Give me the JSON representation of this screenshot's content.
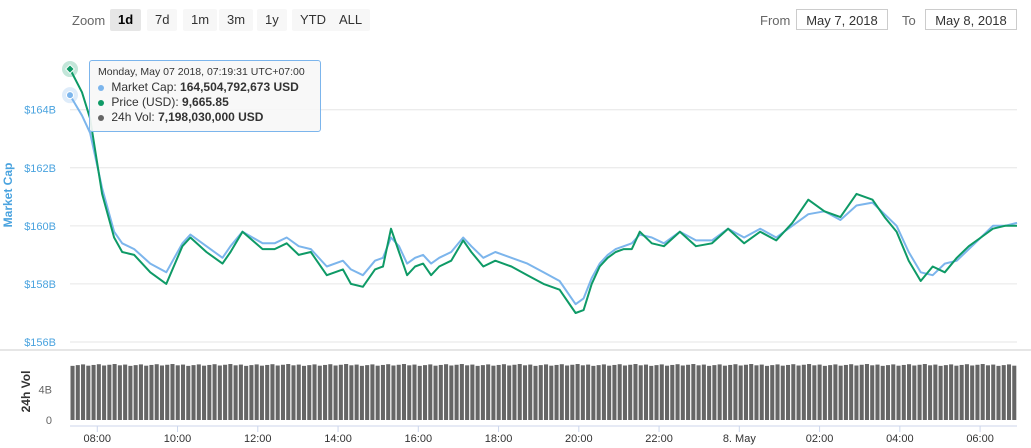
{
  "toolbar": {
    "zoom_label": "Zoom",
    "buttons": [
      "1d",
      "7d",
      "1m",
      "3m",
      "1y",
      "YTD",
      "ALL"
    ],
    "active": "1d",
    "from_label": "From",
    "from_value": "May 7, 2018",
    "to_label": "To",
    "to_value": "May 8, 2018"
  },
  "tooltip": {
    "title": "Monday, May 07 2018, 07:19:31 UTC+07:00",
    "rows": [
      {
        "label": "Market Cap:",
        "value": "164,504,792,673 USD"
      },
      {
        "label": "Price (USD):",
        "value": "9,665.85"
      },
      {
        "label": "24h Vol:",
        "value": "7,198,030,000 USD"
      }
    ]
  },
  "colors": {
    "market_cap": "#7cb5ec",
    "market_cap_label": "#4aa3df",
    "price": "#0e9a66",
    "volume": "#666666"
  },
  "chart_data": {
    "type": "line",
    "x_unit": "hours since 07:19 May 7 2018 (UTC+07:00)",
    "x_ticks": [
      {
        "label": "08:00",
        "x": 0.68
      },
      {
        "label": "10:00",
        "x": 2.68
      },
      {
        "label": "12:00",
        "x": 4.68
      },
      {
        "label": "14:00",
        "x": 6.68
      },
      {
        "label": "16:00",
        "x": 8.68
      },
      {
        "label": "18:00",
        "x": 10.68
      },
      {
        "label": "20:00",
        "x": 12.68
      },
      {
        "label": "22:00",
        "x": 14.68
      },
      {
        "label": "8. May",
        "x": 16.68
      },
      {
        "label": "02:00",
        "x": 18.68
      },
      {
        "label": "04:00",
        "x": 20.68
      },
      {
        "label": "06:00",
        "x": 22.68
      }
    ],
    "y_axis": {
      "label": "Market Cap",
      "ticks": [
        "$156B",
        "$158B",
        "$160B",
        "$162B",
        "$164B"
      ],
      "tick_values": [
        156,
        158,
        160,
        162,
        164
      ],
      "range": [
        156,
        166.4
      ]
    },
    "vol_axis": {
      "label": "24h Vol",
      "ticks": [
        "0",
        "4B"
      ],
      "tick_values": [
        0,
        4
      ],
      "range": [
        0,
        8.5
      ]
    },
    "series": [
      {
        "name": "Market Cap",
        "x": [
          0,
          0.3,
          0.5,
          0.8,
          1.1,
          1.3,
          1.6,
          2.0,
          2.4,
          2.8,
          3.0,
          3.4,
          3.8,
          4.0,
          4.3,
          4.8,
          5.1,
          5.4,
          5.7,
          6.0,
          6.4,
          6.8,
          7.0,
          7.3,
          7.6,
          7.8,
          8.0,
          8.2,
          8.4,
          8.6,
          8.8,
          9.0,
          9.2,
          9.5,
          9.8,
          10.0,
          10.3,
          10.6,
          11.0,
          11.4,
          11.8,
          12.2,
          12.6,
          12.8,
          13.0,
          13.2,
          13.4,
          13.6,
          13.8,
          14.0,
          14.2,
          14.5,
          14.8,
          15.2,
          15.6,
          16.0,
          16.4,
          16.8,
          17.2,
          17.6,
          18.0,
          18.4,
          18.8,
          19.2,
          19.6,
          20.0,
          20.3,
          20.6,
          20.9,
          21.2,
          21.5,
          21.8,
          22.1,
          22.4,
          22.7,
          23.0,
          23.3,
          23.6
        ],
        "y": [
          164.5,
          163.8,
          163.2,
          161.3,
          159.8,
          159.4,
          159.2,
          158.7,
          158.4,
          159.4,
          159.7,
          159.3,
          158.9,
          159.3,
          159.8,
          159.4,
          159.4,
          159.6,
          159.3,
          159.2,
          158.6,
          158.8,
          158.5,
          158.3,
          158.8,
          158.9,
          159.6,
          159.3,
          158.7,
          158.9,
          159.0,
          158.7,
          158.9,
          159.1,
          159.6,
          159.3,
          158.9,
          159.1,
          158.9,
          158.7,
          158.4,
          158.1,
          157.3,
          157.5,
          158.2,
          158.7,
          159.0,
          159.2,
          159.3,
          159.4,
          159.7,
          159.6,
          159.4,
          159.8,
          159.5,
          159.5,
          159.9,
          159.6,
          159.9,
          159.6,
          160.0,
          160.4,
          160.5,
          160.2,
          160.7,
          160.8,
          160.4,
          160.0,
          159.1,
          158.4,
          158.3,
          158.7,
          158.8,
          159.2,
          159.6,
          160.0,
          160.0,
          160.1
        ]
      },
      {
        "name": "Price (USD)",
        "x": [
          0,
          0.3,
          0.5,
          0.8,
          1.1,
          1.3,
          1.6,
          2.0,
          2.4,
          2.8,
          3.0,
          3.4,
          3.8,
          4.0,
          4.3,
          4.8,
          5.1,
          5.4,
          5.7,
          6.0,
          6.4,
          6.8,
          7.0,
          7.3,
          7.6,
          7.8,
          8.0,
          8.2,
          8.4,
          8.6,
          8.8,
          9.0,
          9.2,
          9.5,
          9.8,
          10.0,
          10.3,
          10.6,
          11.0,
          11.4,
          11.8,
          12.2,
          12.6,
          12.8,
          13.0,
          13.2,
          13.4,
          13.6,
          13.8,
          14.0,
          14.2,
          14.5,
          14.8,
          15.2,
          15.6,
          16.0,
          16.4,
          16.8,
          17.2,
          17.6,
          18.0,
          18.4,
          18.8,
          19.2,
          19.6,
          20.0,
          20.3,
          20.6,
          20.9,
          21.2,
          21.5,
          21.8,
          22.1,
          22.4,
          22.7,
          23.0,
          23.3,
          23.6
        ],
        "y": [
          165.4,
          164.6,
          163.7,
          161.1,
          159.6,
          159.1,
          159.0,
          158.4,
          158.0,
          159.3,
          159.6,
          159.1,
          158.7,
          159.1,
          159.8,
          159.2,
          159.2,
          159.4,
          159.0,
          159.1,
          158.3,
          158.5,
          158.0,
          157.9,
          158.5,
          158.6,
          159.9,
          159.1,
          158.3,
          158.6,
          158.7,
          158.3,
          158.6,
          158.8,
          159.5,
          159.1,
          158.6,
          158.8,
          158.6,
          158.3,
          158.0,
          157.8,
          157.0,
          157.1,
          158.0,
          158.6,
          158.9,
          159.1,
          159.2,
          159.2,
          159.8,
          159.4,
          159.3,
          159.8,
          159.3,
          159.4,
          159.9,
          159.4,
          159.8,
          159.5,
          160.1,
          160.9,
          160.5,
          160.3,
          161.1,
          160.9,
          160.3,
          159.8,
          158.8,
          158.1,
          158.6,
          158.4,
          158.9,
          159.3,
          159.6,
          159.9,
          160.0,
          160.0
        ]
      }
    ],
    "volume": {
      "name": "24h Vol",
      "count": 180,
      "base": 7.2,
      "min": 6.9,
      "max": 7.3
    },
    "markers": [
      {
        "series": "Market Cap",
        "x": 0,
        "y": 164.5
      },
      {
        "series": "Price (USD)",
        "x": 0,
        "y": 165.4
      }
    ]
  }
}
